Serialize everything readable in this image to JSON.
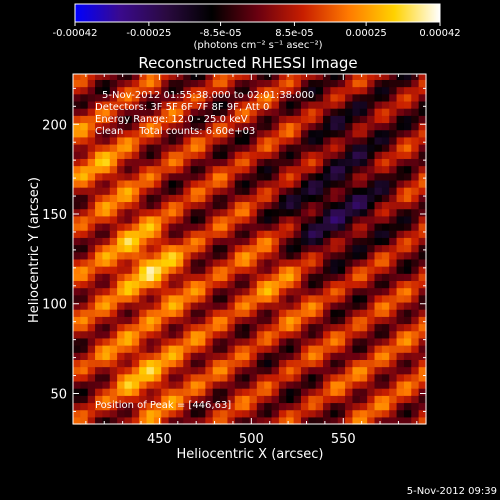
{
  "chart_data": {
    "type": "heatmap",
    "title": "Reconstructed RHESSI Image",
    "xlabel": "Heliocentric X (arcsec)",
    "ylabel": "Heliocentric Y (arcsec)",
    "xlim": [
      403,
      595
    ],
    "ylim": [
      33,
      228
    ],
    "x_ticks": [
      450,
      500,
      550
    ],
    "y_ticks": [
      50,
      100,
      150,
      200
    ],
    "colorbar": {
      "ticks": [
        -0.00042,
        -0.00025,
        -8.5e-05,
        8.5e-05,
        0.00025,
        0.00042
      ],
      "tick_labels": [
        "-0.00042",
        "-0.00025",
        "-8.5e-05",
        "8.5e-05",
        "0.00025",
        "0.00042"
      ],
      "range": [
        -0.00042,
        0.00042
      ],
      "unit_text": "(photons cm⁻² s⁻¹ asec⁻²)"
    },
    "annotations": [
      "5-Nov-2012 01:55:38.000 to 02:01:38.000",
      "Detectors: 3F 5F 6F 7F 8F 9F, Att 0",
      "Energy Range: 12.0 - 25.0 keV",
      "Clean     Total counts: 6.60e+03",
      "Position of Peak = [446,63]"
    ],
    "peak_position": [
      446,
      63
    ],
    "footer": "5-Nov-2012 09:39",
    "grid": false,
    "colormap": [
      "#0000ff",
      "#3a0a8c",
      "#2a0a40",
      "#000000",
      "#6a0010",
      "#c81e00",
      "#ff7a00",
      "#ffd200",
      "#ffffff"
    ],
    "features": {
      "stripe_direction_deg": 35,
      "stripe_spacing_arcsec": 22,
      "bright_blobs": [
        {
          "x": 440,
          "y": 122,
          "amp": 0.45
        },
        {
          "x": 420,
          "y": 180,
          "amp": 0.25
        },
        {
          "x": 510,
          "y": 110,
          "amp": 0.2
        },
        {
          "x": 446,
          "y": 63,
          "amp": 0.35
        },
        {
          "x": 575,
          "y": 60,
          "amp": 0.15
        }
      ],
      "dark_blobs": [
        {
          "x": 545,
          "y": 152,
          "amp": -0.5
        },
        {
          "x": 560,
          "y": 200,
          "amp": -0.25
        }
      ]
    }
  }
}
